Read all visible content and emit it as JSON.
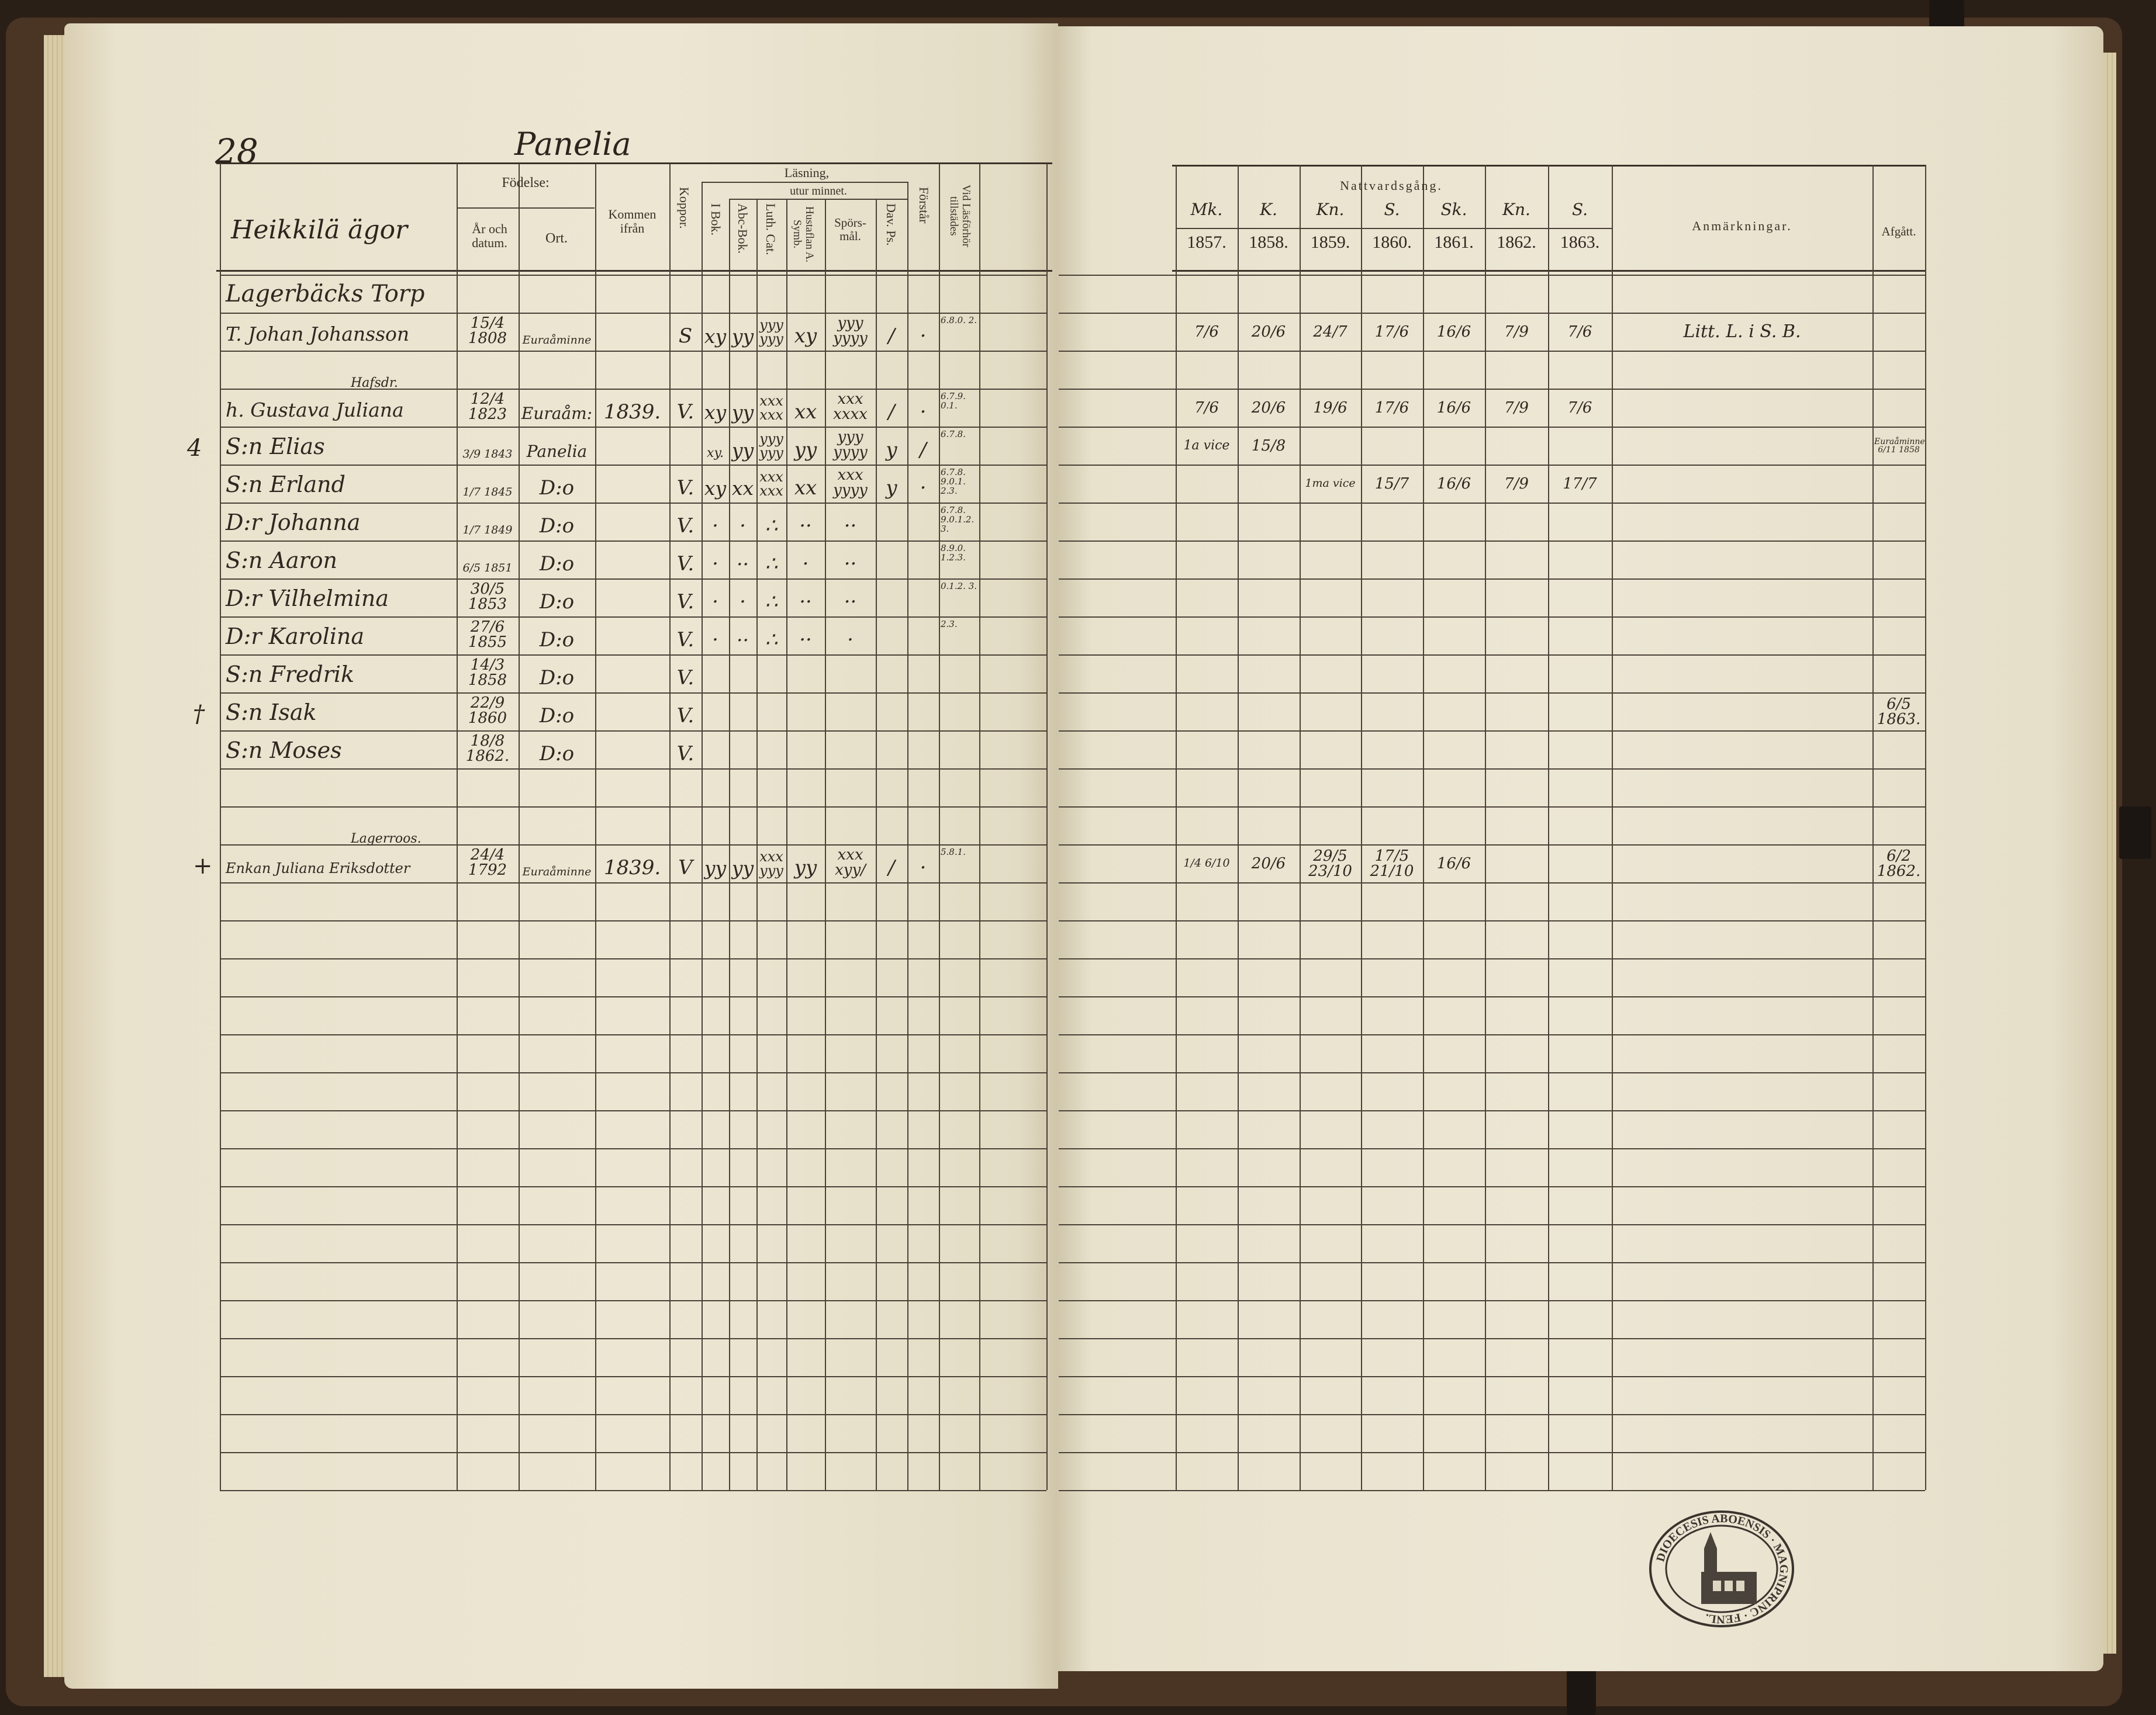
{
  "left_page": {
    "page_number": "28",
    "village": "Panelia",
    "estate": "Heikkilä ägor",
    "headers": {
      "fodelse": "Födelse:",
      "ar": "År och datum.",
      "ort": "Ort.",
      "kommen": "Kommen ifrån",
      "koppor": "Koppor.",
      "lasning": "Läsning,",
      "utur_minnet": "utur minnet.",
      "ibok": "I Bok.",
      "abc": "Abc-Bok.",
      "luth": "Luth. Cat.",
      "hust": "Hustaflan A. Symb.",
      "spors": "Spörs-mål.",
      "dav": "Dav. Ps.",
      "forstar": "Förstår",
      "vid": "Vid Läsförhör tillstädes"
    },
    "rows": [
      {
        "row": 0,
        "name": "Lagerbäcks Torp"
      },
      {
        "row": 1,
        "name": "T. Johan Johansson",
        "dob": "15/4 1808",
        "ort": "Euraåminne",
        "koppor": "S",
        "ibok": "xy",
        "abc": "yy",
        "luth": "yyy yyy",
        "hust": "xy",
        "spors": "yyy yyyy",
        "dav": "/",
        "forstar": "·",
        "vid": "6.8.0. 2."
      },
      {
        "row": 3,
        "name": "h. Gustava Juliana",
        "note": "Hafsdr.",
        "dob": "12/4 1823",
        "ort": "Euraåm:",
        "kommen": "1839.",
        "koppor": "V.",
        "ibok": "xy",
        "abc": "yy",
        "luth": "xxx xxx",
        "hust": "xx",
        "spors": "xxx xxxx",
        "dav": "/",
        "forstar": "·",
        "vid": "6.7.9. 0.1."
      },
      {
        "row": 4,
        "name": "S:n Elias",
        "mark": "4",
        "dob": "3/9 1843",
        "ort": "Panelia",
        "ibok": "xy.",
        "abc": "yy",
        "luth": "yyy yyy",
        "hust": "yy",
        "spors": "yyy yyyy",
        "dav": "y",
        "forstar": "/",
        "vid": "6.7.8."
      },
      {
        "row": 5,
        "name": "S:n Erland",
        "dob": "1/7 1845",
        "ort": "D:o",
        "koppor": "V.",
        "ibok": "xy",
        "abc": "xx",
        "luth": "xxx xxx",
        "hust": "xx",
        "spors": "xxx yyyy",
        "dav": "y",
        "forstar": "·",
        "vid": "6.7.8. 9.0.1. 2.3."
      },
      {
        "row": 6,
        "name": "D:r Johanna",
        "dob": "1/7 1849",
        "ort": "D:o",
        "koppor": "V.",
        "ibok": "·",
        "abc": "·",
        "luth": "∴",
        "hust": "··",
        "spors": "··",
        "vid": "6.7.8. 9.0.1.2. 3."
      },
      {
        "row": 7,
        "name": "S:n Aaron",
        "dob": "6/5 1851",
        "ort": "D:o",
        "koppor": "V.",
        "ibok": "·",
        "abc": "··",
        "luth": "∴",
        "hust": "·",
        "spors": "··",
        "vid": "8.9.0. 1.2.3."
      },
      {
        "row": 8,
        "name": "D:r Vilhelmina",
        "dob": "30/5 1853",
        "ort": "D:o",
        "koppor": "V.",
        "ibok": "·",
        "abc": "·",
        "luth": "∴",
        "hust": "··",
        "spors": "··",
        "vid": "0.1.2. 3."
      },
      {
        "row": 9,
        "name": "D:r Karolina",
        "dob": "27/6 1855",
        "ort": "D:o",
        "koppor": "V.",
        "ibok": "·",
        "abc": "··",
        "luth": "∴",
        "hust": "··",
        "spors": "·",
        "vid": "2.3."
      },
      {
        "row": 10,
        "name": "S:n Fredrik",
        "dob": "14/3 1858",
        "ort": "D:o",
        "koppor": "V."
      },
      {
        "row": 11,
        "name": "S:n Isak",
        "mark": "†",
        "dob": "22/9 1860",
        "ort": "D:o",
        "koppor": "V."
      },
      {
        "row": 12,
        "name": "S:n Moses",
        "dob": "18/8 1862.",
        "ort": "D:o",
        "koppor": "V."
      },
      {
        "row": 15,
        "name": "Enkan Juliana Eriksdotter",
        "note": "Lagerroos.",
        "mark": "+",
        "dob": "24/4 1792",
        "ort": "Euraåminne",
        "kommen": "1839.",
        "koppor": "V",
        "ibok": "yy",
        "abc": "yy",
        "luth": "xxx yyy",
        "hust": "yy",
        "spors": "xxx xyy/",
        "dav": "/",
        "forstar": "·",
        "vid": "5.8.1."
      }
    ]
  },
  "right_page": {
    "headers": {
      "nattvardsgang": "Nattvardsgång.",
      "years": [
        "1857.",
        "1858.",
        "1859.",
        "1860.",
        "1861.",
        "1862.",
        "1863."
      ],
      "year_marks": [
        "Mk.",
        "K.",
        "Kn.",
        "S.",
        "Sk.",
        "Kn.",
        "S."
      ],
      "anmarkningar": "Anmärkningar.",
      "afgatt": "Afgått."
    },
    "rows": [
      {
        "row": 1,
        "y1857": "7/6",
        "y1858": "20/6",
        "y1859": "24/7",
        "y1860": "17/6",
        "y1861": "16/6",
        "y1862": "7/9",
        "y1863": "7/6",
        "anm": "Litt. L. i S. B."
      },
      {
        "row": 3,
        "y1857": "7/6",
        "y1858": "20/6",
        "y1859": "19/6",
        "y1860": "17/6",
        "y1861": "16/6",
        "y1862": "7/9",
        "y1863": "7/6"
      },
      {
        "row": 4,
        "y1857": "1a vice",
        "y1858": "15/8",
        "afgatt": "Euraåminne 6/11 1858"
      },
      {
        "row": 5,
        "y1859": "1ma vice",
        "y1860": "15/7",
        "y1861": "16/6",
        "y1862": "7/9",
        "y1863": "17/7"
      },
      {
        "row": 11,
        "afgatt": "6/5 1863."
      },
      {
        "row": 15,
        "y1857": "1/4 6/10",
        "y1858": "20/6",
        "y1859": "29/5 23/10",
        "y1860": "17/5 21/10",
        "y1861": "16/6",
        "afgatt": "6/2 1862."
      }
    ]
  },
  "stamp": {
    "text": "DIOECESIS ABOENSIS · MAGNIPRINC · FENL.",
    "icon": "church-seal-icon",
    "color": "#3a342e"
  },
  "colors": {
    "paper": "#ece6d3",
    "ink": "#2c241d",
    "cover": "#4a3424"
  }
}
